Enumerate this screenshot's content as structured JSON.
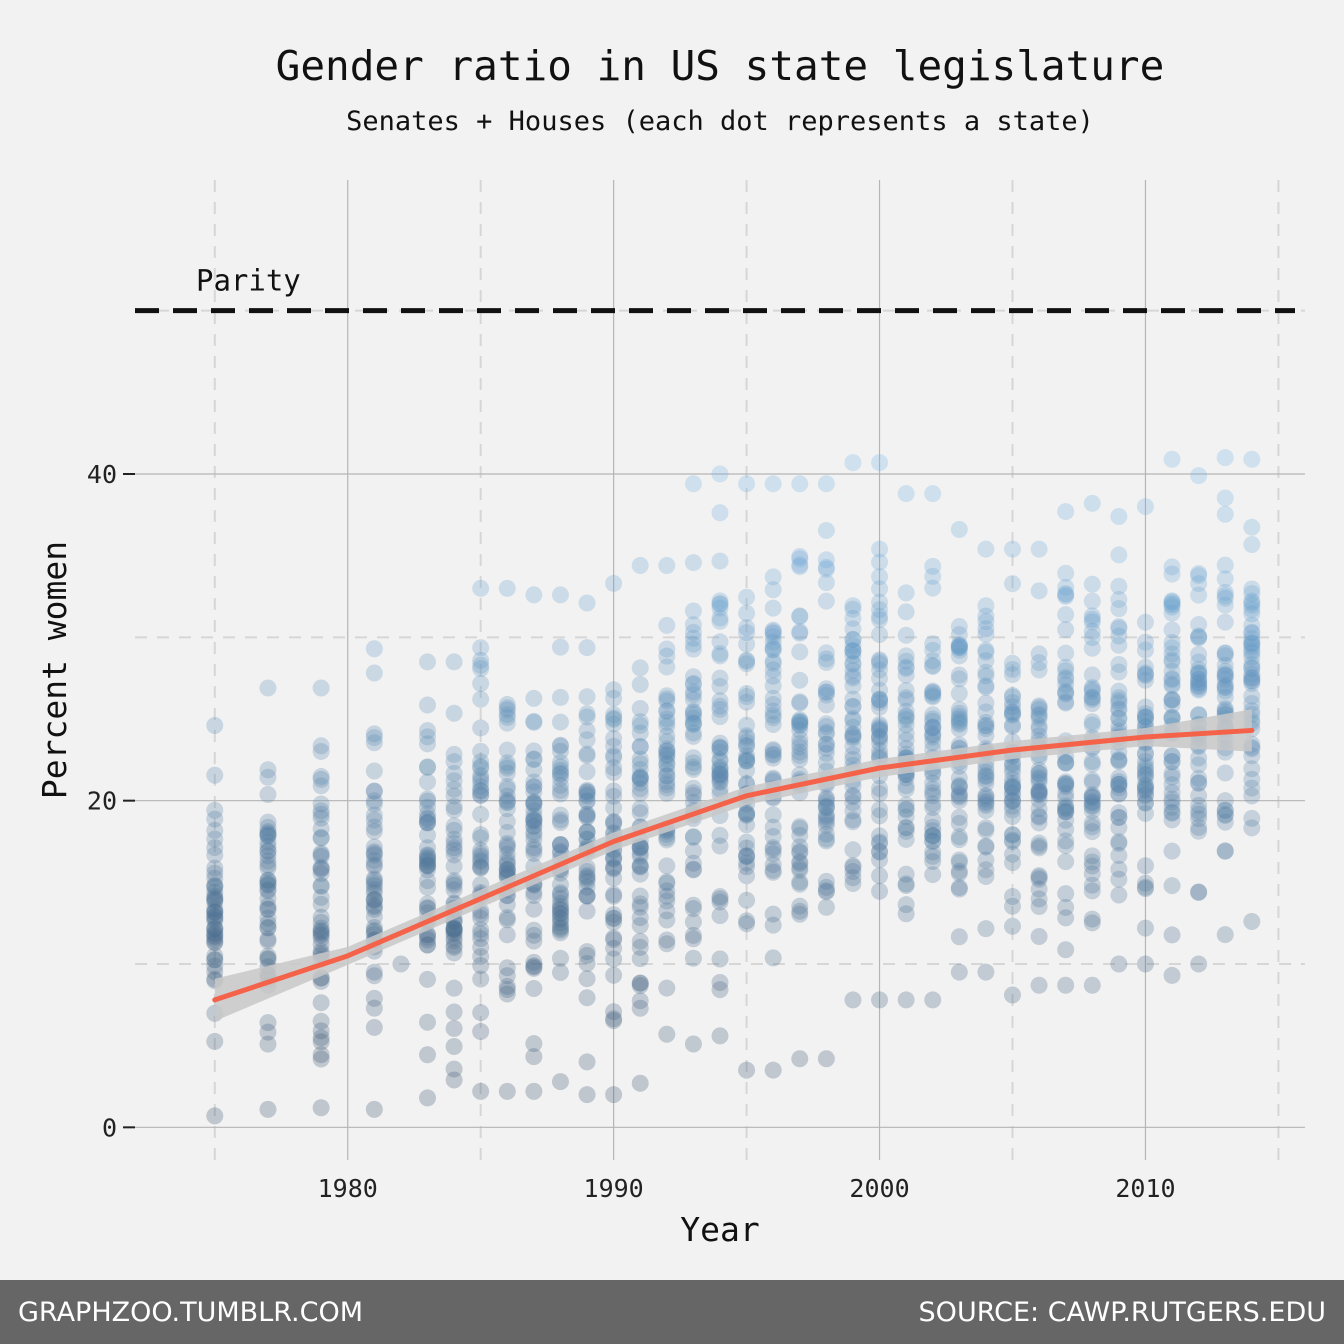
{
  "chart_data": {
    "type": "scatter",
    "title": "Gender ratio in US state legislature",
    "subtitle": "Senates + Houses (each dot represents a state)",
    "xlabel": "Year",
    "ylabel": "Percent women",
    "xlim": [
      1972,
      2016
    ],
    "ylim": [
      -2,
      58
    ],
    "x_ticks": [
      1980,
      1990,
      2000,
      2010
    ],
    "y_ticks": [
      0,
      20,
      40
    ],
    "grid": true,
    "reference_line": {
      "y": 50,
      "label": "Parity",
      "style": "dashed"
    },
    "point_years": [
      1975,
      1977,
      1979,
      1981,
      1982,
      1983,
      1984,
      1985,
      1986,
      1987,
      1988,
      1989,
      1990,
      1991,
      1992,
      1993,
      1994,
      1995,
      1996,
      1997,
      1998,
      1999,
      2000,
      2001,
      2002,
      2003,
      2004,
      2005,
      2006,
      2007,
      2008,
      2009,
      2010,
      2011,
      2012,
      2013,
      2014
    ],
    "point_ranges": [
      [
        0.7,
        24.6
      ],
      [
        1.1,
        26.9
      ],
      [
        1.2,
        26.9
      ],
      [
        1.1,
        29.3
      ],
      [
        10.0,
        10.0
      ],
      [
        1.8,
        28.5
      ],
      [
        2.9,
        28.5
      ],
      [
        2.2,
        33.0
      ],
      [
        2.2,
        33.0
      ],
      [
        2.2,
        32.6
      ],
      [
        2.8,
        32.6
      ],
      [
        2.0,
        32.1
      ],
      [
        2.0,
        33.3
      ],
      [
        2.7,
        34.4
      ],
      [
        5.7,
        34.4
      ],
      [
        5.1,
        39.4
      ],
      [
        5.6,
        40.0
      ],
      [
        3.5,
        39.4
      ],
      [
        3.5,
        39.4
      ],
      [
        4.2,
        39.4
      ],
      [
        4.2,
        39.4
      ],
      [
        7.8,
        40.7
      ],
      [
        7.8,
        40.7
      ],
      [
        7.8,
        38.8
      ],
      [
        7.8,
        38.8
      ],
      [
        9.5,
        36.6
      ],
      [
        9.5,
        35.4
      ],
      [
        8.1,
        35.4
      ],
      [
        8.7,
        35.4
      ],
      [
        8.7,
        37.7
      ],
      [
        8.7,
        38.2
      ],
      [
        10.0,
        37.4
      ],
      [
        10.0,
        38.0
      ],
      [
        9.3,
        40.9
      ],
      [
        10.0,
        39.9
      ],
      [
        11.8,
        41.0
      ],
      [
        12.6,
        40.9
      ]
    ],
    "trend": {
      "x": [
        1975,
        1980,
        1985,
        1990,
        1995,
        2000,
        2005,
        2010,
        2014
      ],
      "y": [
        7.8,
        10.5,
        14.0,
        17.5,
        20.3,
        22.0,
        23.1,
        23.9,
        24.3
      ]
    },
    "colors": {
      "low": "#3d5570",
      "high": "#75b4e6",
      "trend": "#f4624a",
      "band": "#c8c8c8",
      "parity": "#111111"
    }
  },
  "footer": {
    "left": "GRAPHZOO.TUMBLR.COM",
    "right": "SOURCE: CAWP.RUTGERS.EDU"
  }
}
